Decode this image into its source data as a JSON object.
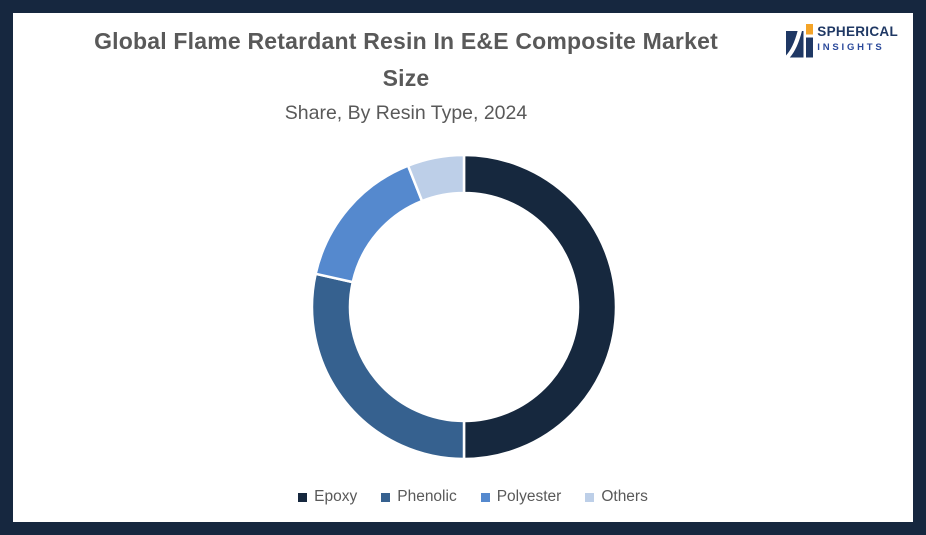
{
  "frame": {
    "border_color": "#16273F",
    "background_color": "#FFFFFF"
  },
  "header": {
    "title_line1": "Global Flame Retardant Resin In E&E Composite Market",
    "title_line2": "Size",
    "subtitle": "Share, By Resin Type, 2024",
    "text_color": "#595959"
  },
  "logo": {
    "brand": "SPHERICAL",
    "tagline": "INSIGHTS",
    "navy": "#1F3864",
    "tagline_blue": "#2B4A9B",
    "orange": "#F4A428"
  },
  "chart_data": {
    "type": "pie",
    "variant": "donut",
    "title": "Global Flame Retardant Resin In E&E Composite Market Size",
    "subtitle": "Share, By Resin Type, 2024",
    "categories": [
      "Epoxy",
      "Phenolic",
      "Polyester",
      "Others"
    ],
    "values": [
      50,
      28.5,
      15.5,
      6
    ],
    "values_note": "percent share estimated from arc angles; no data labels shown in chart",
    "colors": [
      "#16283E",
      "#36618F",
      "#5589CE",
      "#BDCFE8"
    ],
    "start_angle_deg": 0,
    "direction": "clockwise",
    "inner_radius_ratio": 0.75,
    "separator_color": "#FFFFFF",
    "legend_position": "bottom",
    "legend": {
      "text_color": "#595959",
      "items": [
        "Epoxy",
        "Phenolic",
        "Polyester",
        "Others"
      ]
    }
  }
}
